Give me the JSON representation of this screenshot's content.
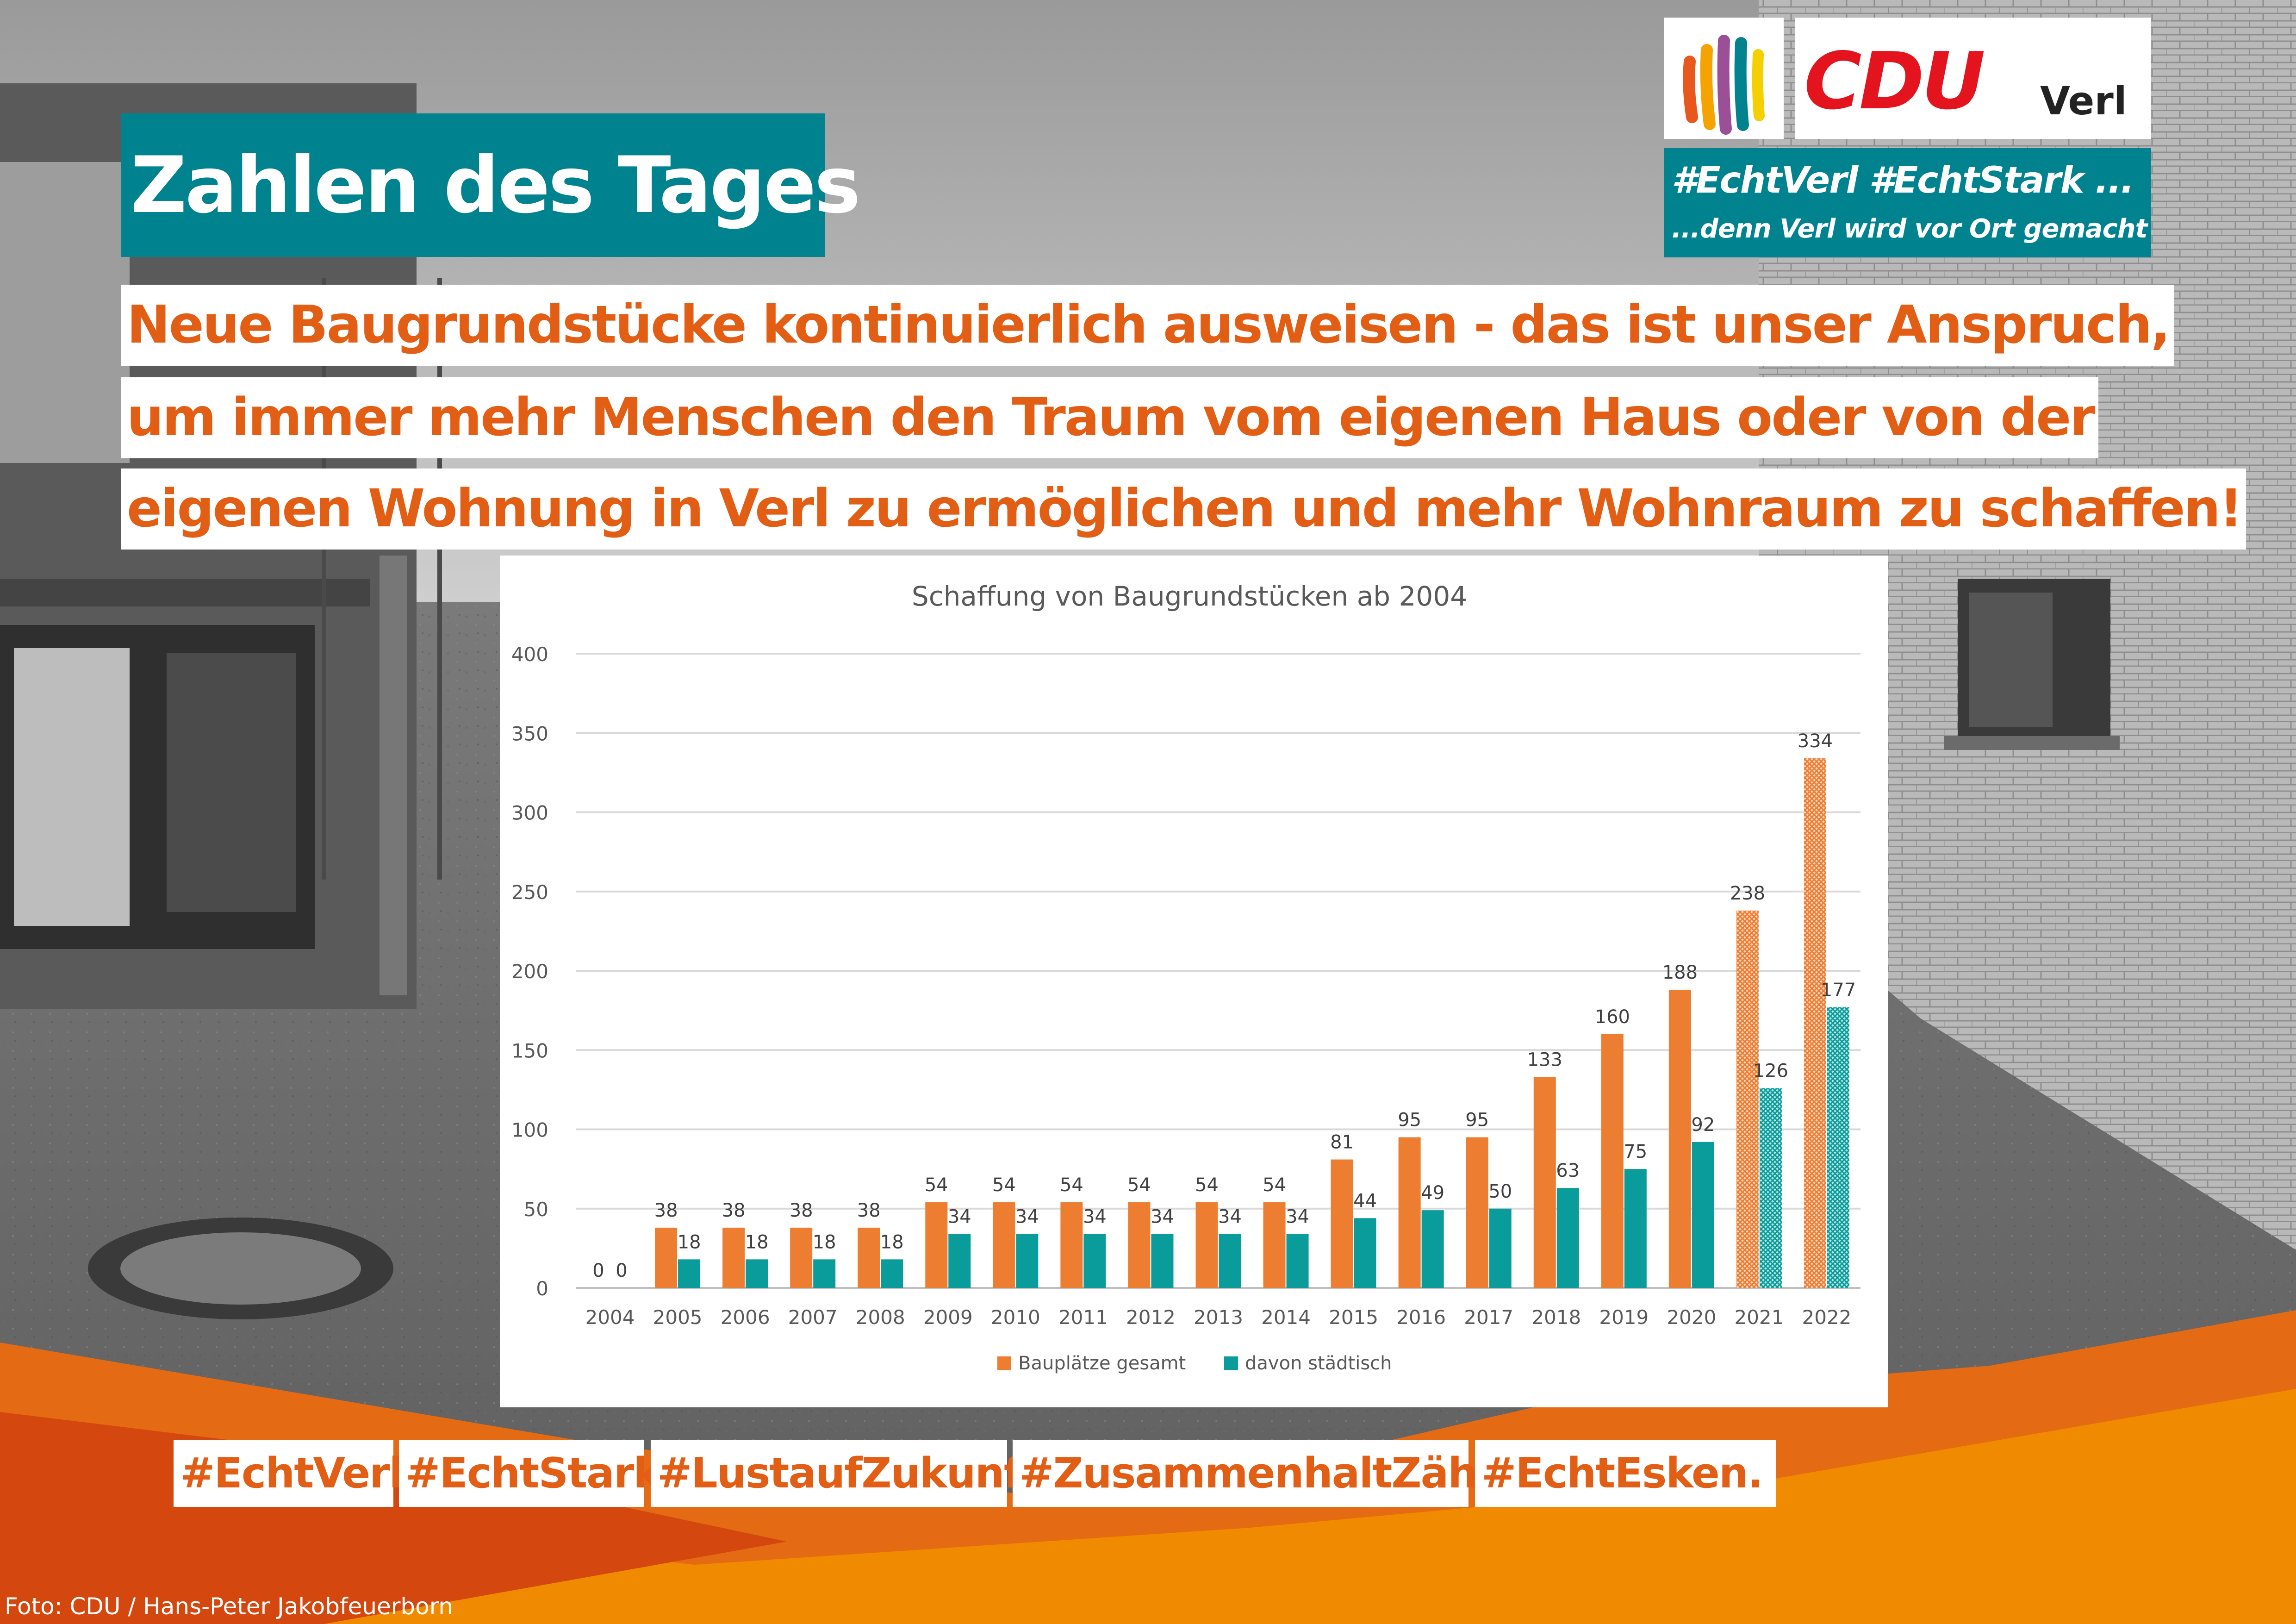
{
  "title": "Zahlen des Tages",
  "headline": [
    "Neue Baugrundstücke kontinuierlich ausweisen - das ist unser Anspruch,",
    "um immer mehr Menschen den Traum vom eigenen Haus oder von der",
    "eigenen Wohnung in Verl zu ermöglichen und mehr Wohnraum zu schaffen!"
  ],
  "logo": {
    "party": "CDU",
    "place": "Verl",
    "icon": "colored-stripes-logo-icon",
    "tagline_1": "#EchtVerl #EchtStark ...",
    "tagline_2": "...denn Verl wird vor Ort gemacht"
  },
  "hashtags": [
    "#EchtVerl.",
    "#EchtStark",
    "#LustaufZukunft",
    "#ZusammenhaltZählt!",
    "#EchtEsken."
  ],
  "credit": "Foto: CDU / Hans-Peter Jakobfeuerborn",
  "colors": {
    "orange": "#ed7d31",
    "teal": "#0a9c9a",
    "accent_teal": "#00828f",
    "headline_orange": "#e25e15"
  },
  "chart_data": {
    "type": "bar",
    "title": "Schaffung von Baugrundstücken ab 2004",
    "categories": [
      "2004",
      "2005",
      "2006",
      "2007",
      "2008",
      "2009",
      "2010",
      "2011",
      "2012",
      "2013",
      "2014",
      "2015",
      "2016",
      "2017",
      "2018",
      "2019",
      "2020",
      "2021",
      "2022"
    ],
    "series": [
      {
        "name": "Bauplätze gesamt",
        "color": "#ed7d31",
        "values": [
          0,
          38,
          38,
          38,
          38,
          54,
          54,
          54,
          54,
          54,
          54,
          81,
          95,
          95,
          133,
          160,
          188,
          238,
          334
        ]
      },
      {
        "name": "davon städtisch",
        "color": "#0a9c9a",
        "values": [
          0,
          18,
          18,
          18,
          18,
          34,
          34,
          34,
          34,
          34,
          34,
          44,
          49,
          50,
          63,
          75,
          92,
          126,
          177
        ]
      }
    ],
    "hatched_categories": [
      "2021",
      "2022"
    ],
    "ylim": [
      0,
      400
    ],
    "yticks": [
      0,
      50,
      100,
      150,
      200,
      250,
      300,
      350,
      400
    ],
    "grid": true,
    "legend_position": "bottom"
  }
}
